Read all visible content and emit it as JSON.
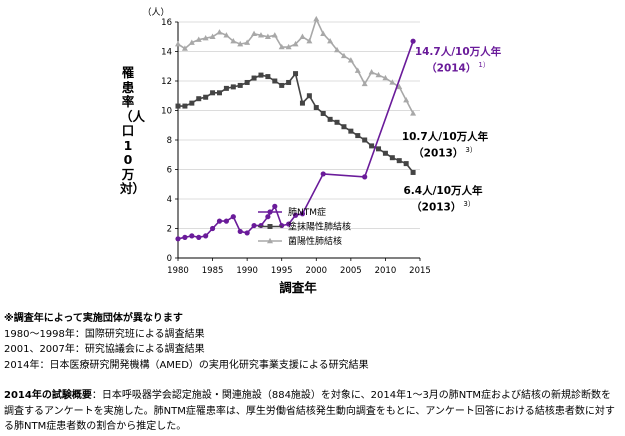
{
  "chart_data": {
    "type": "line",
    "unit": "（人）",
    "ylabel": "罹患率（人口10万対）",
    "xlabel": "調査年",
    "xlim": [
      1980,
      2015
    ],
    "ylim": [
      0,
      16
    ],
    "x_ticks": [
      1980,
      1985,
      1990,
      1995,
      2000,
      2005,
      2010,
      2015
    ],
    "y_ticks": [
      0,
      2,
      4,
      6,
      8,
      10,
      12,
      14,
      16
    ],
    "legend_position": "center-left",
    "series": [
      {
        "name": "肺NTM症",
        "color": "#6a1b9a",
        "marker": "circle",
        "points": [
          [
            1980,
            1.3
          ],
          [
            1981,
            1.4
          ],
          [
            1982,
            1.5
          ],
          [
            1983,
            1.4
          ],
          [
            1984,
            1.5
          ],
          [
            1985,
            2.0
          ],
          [
            1986,
            2.5
          ],
          [
            1987,
            2.5
          ],
          [
            1988,
            2.8
          ],
          [
            1989,
            1.8
          ],
          [
            1990,
            1.7
          ],
          [
            1991,
            2.2
          ],
          [
            1992,
            2.2
          ],
          [
            1993,
            2.8
          ],
          [
            1994,
            3.5
          ],
          [
            1995,
            2.2
          ],
          [
            1996,
            2.3
          ],
          [
            1997,
            2.9
          ],
          [
            1998,
            3.0
          ],
          [
            2001,
            5.7
          ],
          [
            2007,
            5.5
          ],
          [
            2014,
            14.7
          ]
        ]
      },
      {
        "name": "塗抹陽性肺結核",
        "color": "#444444",
        "marker": "square",
        "points": [
          [
            1980,
            10.3
          ],
          [
            1981,
            10.3
          ],
          [
            1982,
            10.5
          ],
          [
            1983,
            10.8
          ],
          [
            1984,
            10.9
          ],
          [
            1985,
            11.2
          ],
          [
            1986,
            11.2
          ],
          [
            1987,
            11.5
          ],
          [
            1988,
            11.6
          ],
          [
            1989,
            11.7
          ],
          [
            1990,
            11.9
          ],
          [
            1991,
            12.2
          ],
          [
            1992,
            12.4
          ],
          [
            1993,
            12.3
          ],
          [
            1994,
            12.0
          ],
          [
            1995,
            11.7
          ],
          [
            1996,
            11.9
          ],
          [
            1997,
            12.5
          ],
          [
            1998,
            10.5
          ],
          [
            1999,
            11.0
          ],
          [
            2000,
            10.2
          ],
          [
            2001,
            9.8
          ],
          [
            2002,
            9.4
          ],
          [
            2003,
            9.2
          ],
          [
            2004,
            8.9
          ],
          [
            2005,
            8.6
          ],
          [
            2006,
            8.3
          ],
          [
            2007,
            8.0
          ],
          [
            2008,
            7.6
          ],
          [
            2009,
            7.4
          ],
          [
            2010,
            7.1
          ],
          [
            2011,
            6.8
          ],
          [
            2012,
            6.6
          ],
          [
            2013,
            6.4
          ],
          [
            2014,
            5.8
          ]
        ]
      },
      {
        "name": "菌陽性肺結核",
        "color": "#a8a8a8",
        "marker": "triangle",
        "points": [
          [
            1980,
            14.5
          ],
          [
            1981,
            14.2
          ],
          [
            1982,
            14.6
          ],
          [
            1983,
            14.8
          ],
          [
            1984,
            14.9
          ],
          [
            1985,
            15.0
          ],
          [
            1986,
            15.3
          ],
          [
            1987,
            15.1
          ],
          [
            1988,
            14.7
          ],
          [
            1989,
            14.5
          ],
          [
            1990,
            14.6
          ],
          [
            1991,
            15.2
          ],
          [
            1992,
            15.1
          ],
          [
            1993,
            15.0
          ],
          [
            1994,
            15.1
          ],
          [
            1995,
            14.3
          ],
          [
            1996,
            14.3
          ],
          [
            1997,
            14.5
          ],
          [
            1998,
            15.0
          ],
          [
            1999,
            14.7
          ],
          [
            2000,
            16.2
          ],
          [
            2001,
            15.2
          ],
          [
            2002,
            14.7
          ],
          [
            2003,
            14.1
          ],
          [
            2004,
            13.7
          ],
          [
            2005,
            13.4
          ],
          [
            2006,
            12.7
          ],
          [
            2007,
            11.8
          ],
          [
            2008,
            12.6
          ],
          [
            2009,
            12.4
          ],
          [
            2010,
            12.2
          ],
          [
            2011,
            11.9
          ],
          [
            2012,
            11.6
          ],
          [
            2013,
            10.7
          ],
          [
            2014,
            9.8
          ]
        ]
      }
    ],
    "annotations": [
      {
        "line1": "14.7人/10万人年",
        "line2": "（2014）",
        "ref": "1）"
      },
      {
        "line1": "10.7人/10万人年",
        "line2": "（2013）",
        "ref": "3）"
      },
      {
        "line1": "6.4人/10万人年",
        "line2": "（2013）",
        "ref": "3）"
      }
    ]
  },
  "notes": {
    "heading": "※調査年によって実施団体が異なります",
    "lines": [
      "1980～1998年：国際研究班による調査結果",
      "2001、2007年：研究協議会による調査結果",
      "2014年：日本医療研究開発機構（AMED）の実用化研究事業支援による研究結果"
    ]
  },
  "summary": {
    "label": "2014年の試験概要",
    "text": "：日本呼吸器学会認定施設・関連施設（884施設）を対象に、2014年1～3月の肺NTM症および結核の新規診断数を調査するアンケートを実施した。肺NTM症罹患率は、厚生労働省結核発生動向調査をもとに、アンケート回答における結核患者数に対する肺NTM症患者数の割合から推定した。"
  }
}
